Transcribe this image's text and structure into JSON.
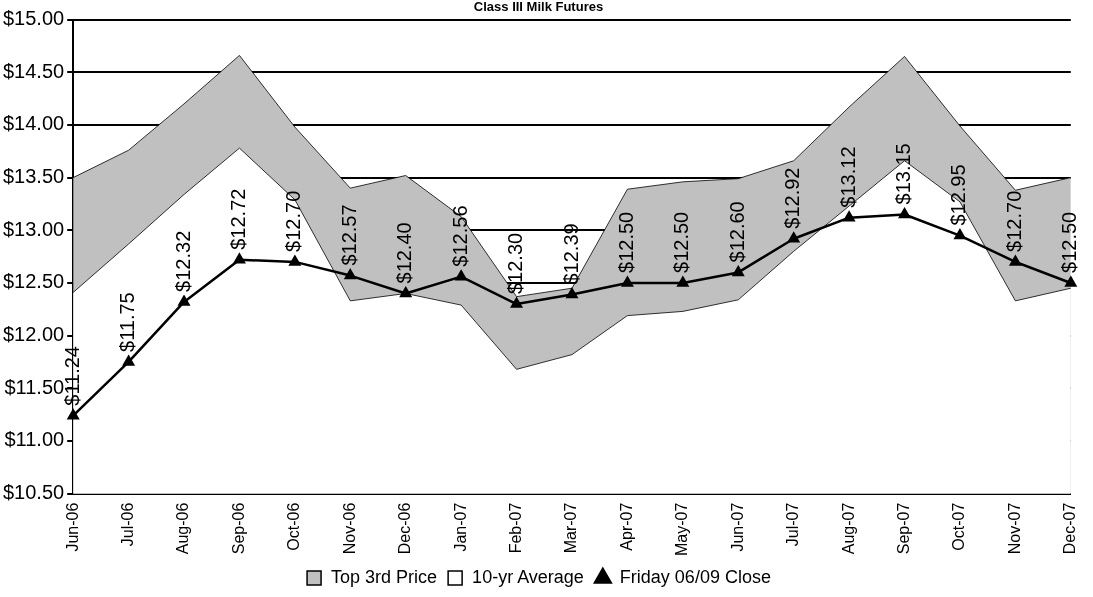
{
  "chart_data": {
    "type": "line",
    "title": "Class III Milk Futures",
    "categories": [
      "Jun-06",
      "Jul-06",
      "Aug-06",
      "Sep-06",
      "Oct-06",
      "Nov-06",
      "Dec-06",
      "Jan-07",
      "Feb-07",
      "Mar-07",
      "Apr-07",
      "May-07",
      "Jun-07",
      "Jul-07",
      "Aug-07",
      "Sep-07",
      "Oct-07",
      "Nov-07",
      "Dec-07"
    ],
    "series": [
      {
        "name": "Top 3rd Price",
        "type": "area",
        "color": "#c0c0c0",
        "values": [
          13.5,
          13.76,
          14.2,
          14.66,
          13.98,
          13.4,
          13.52,
          13.13,
          12.37,
          12.45,
          13.39,
          13.46,
          13.49,
          13.66,
          14.17,
          14.65,
          13.99,
          13.38,
          13.5
        ]
      },
      {
        "name": "10-yr Average",
        "type": "area",
        "color": "#ffffff",
        "values": [
          12.41,
          12.87,
          13.34,
          13.78,
          13.29,
          12.33,
          12.4,
          12.29,
          11.68,
          11.82,
          12.19,
          12.23,
          12.34,
          12.8,
          13.23,
          13.66,
          13.27,
          12.33,
          12.45
        ]
      },
      {
        "name": "Friday 06/09 Close",
        "type": "line",
        "color": "#000000",
        "marker": "triangle",
        "values": [
          11.24,
          11.75,
          12.32,
          12.72,
          12.7,
          12.57,
          12.4,
          12.56,
          12.3,
          12.39,
          12.5,
          12.5,
          12.6,
          12.92,
          13.12,
          13.15,
          12.95,
          12.7,
          12.5
        ],
        "value_labels": [
          "$11.24",
          "$11.75",
          "$12.32",
          "$12.72",
          "$12.70",
          "$12.57",
          "$12.40",
          "$12.56",
          "$12.30",
          "$12.39",
          "$12.50",
          "$12.50",
          "$12.60",
          "$12.92",
          "$13.12",
          "$13.15",
          "$12.95",
          "$12.70",
          "$12.50"
        ]
      }
    ],
    "ylim": [
      10.5,
      15
    ],
    "yticks": [
      {
        "value": 10.5,
        "label": "$10.50"
      },
      {
        "value": 11,
        "label": "$11.00"
      },
      {
        "value": 11.5,
        "label": "$11.50"
      },
      {
        "value": 12,
        "label": "$12.00"
      },
      {
        "value": 12.5,
        "label": "$12.50"
      },
      {
        "value": 13,
        "label": "$13.00"
      },
      {
        "value": 13.5,
        "label": "$13.50"
      },
      {
        "value": 14,
        "label": "$14.00"
      },
      {
        "value": 14.5,
        "label": "$14.50"
      },
      {
        "value": 15,
        "label": "$15.00"
      }
    ],
    "grid": "y",
    "legend": "bottom"
  }
}
